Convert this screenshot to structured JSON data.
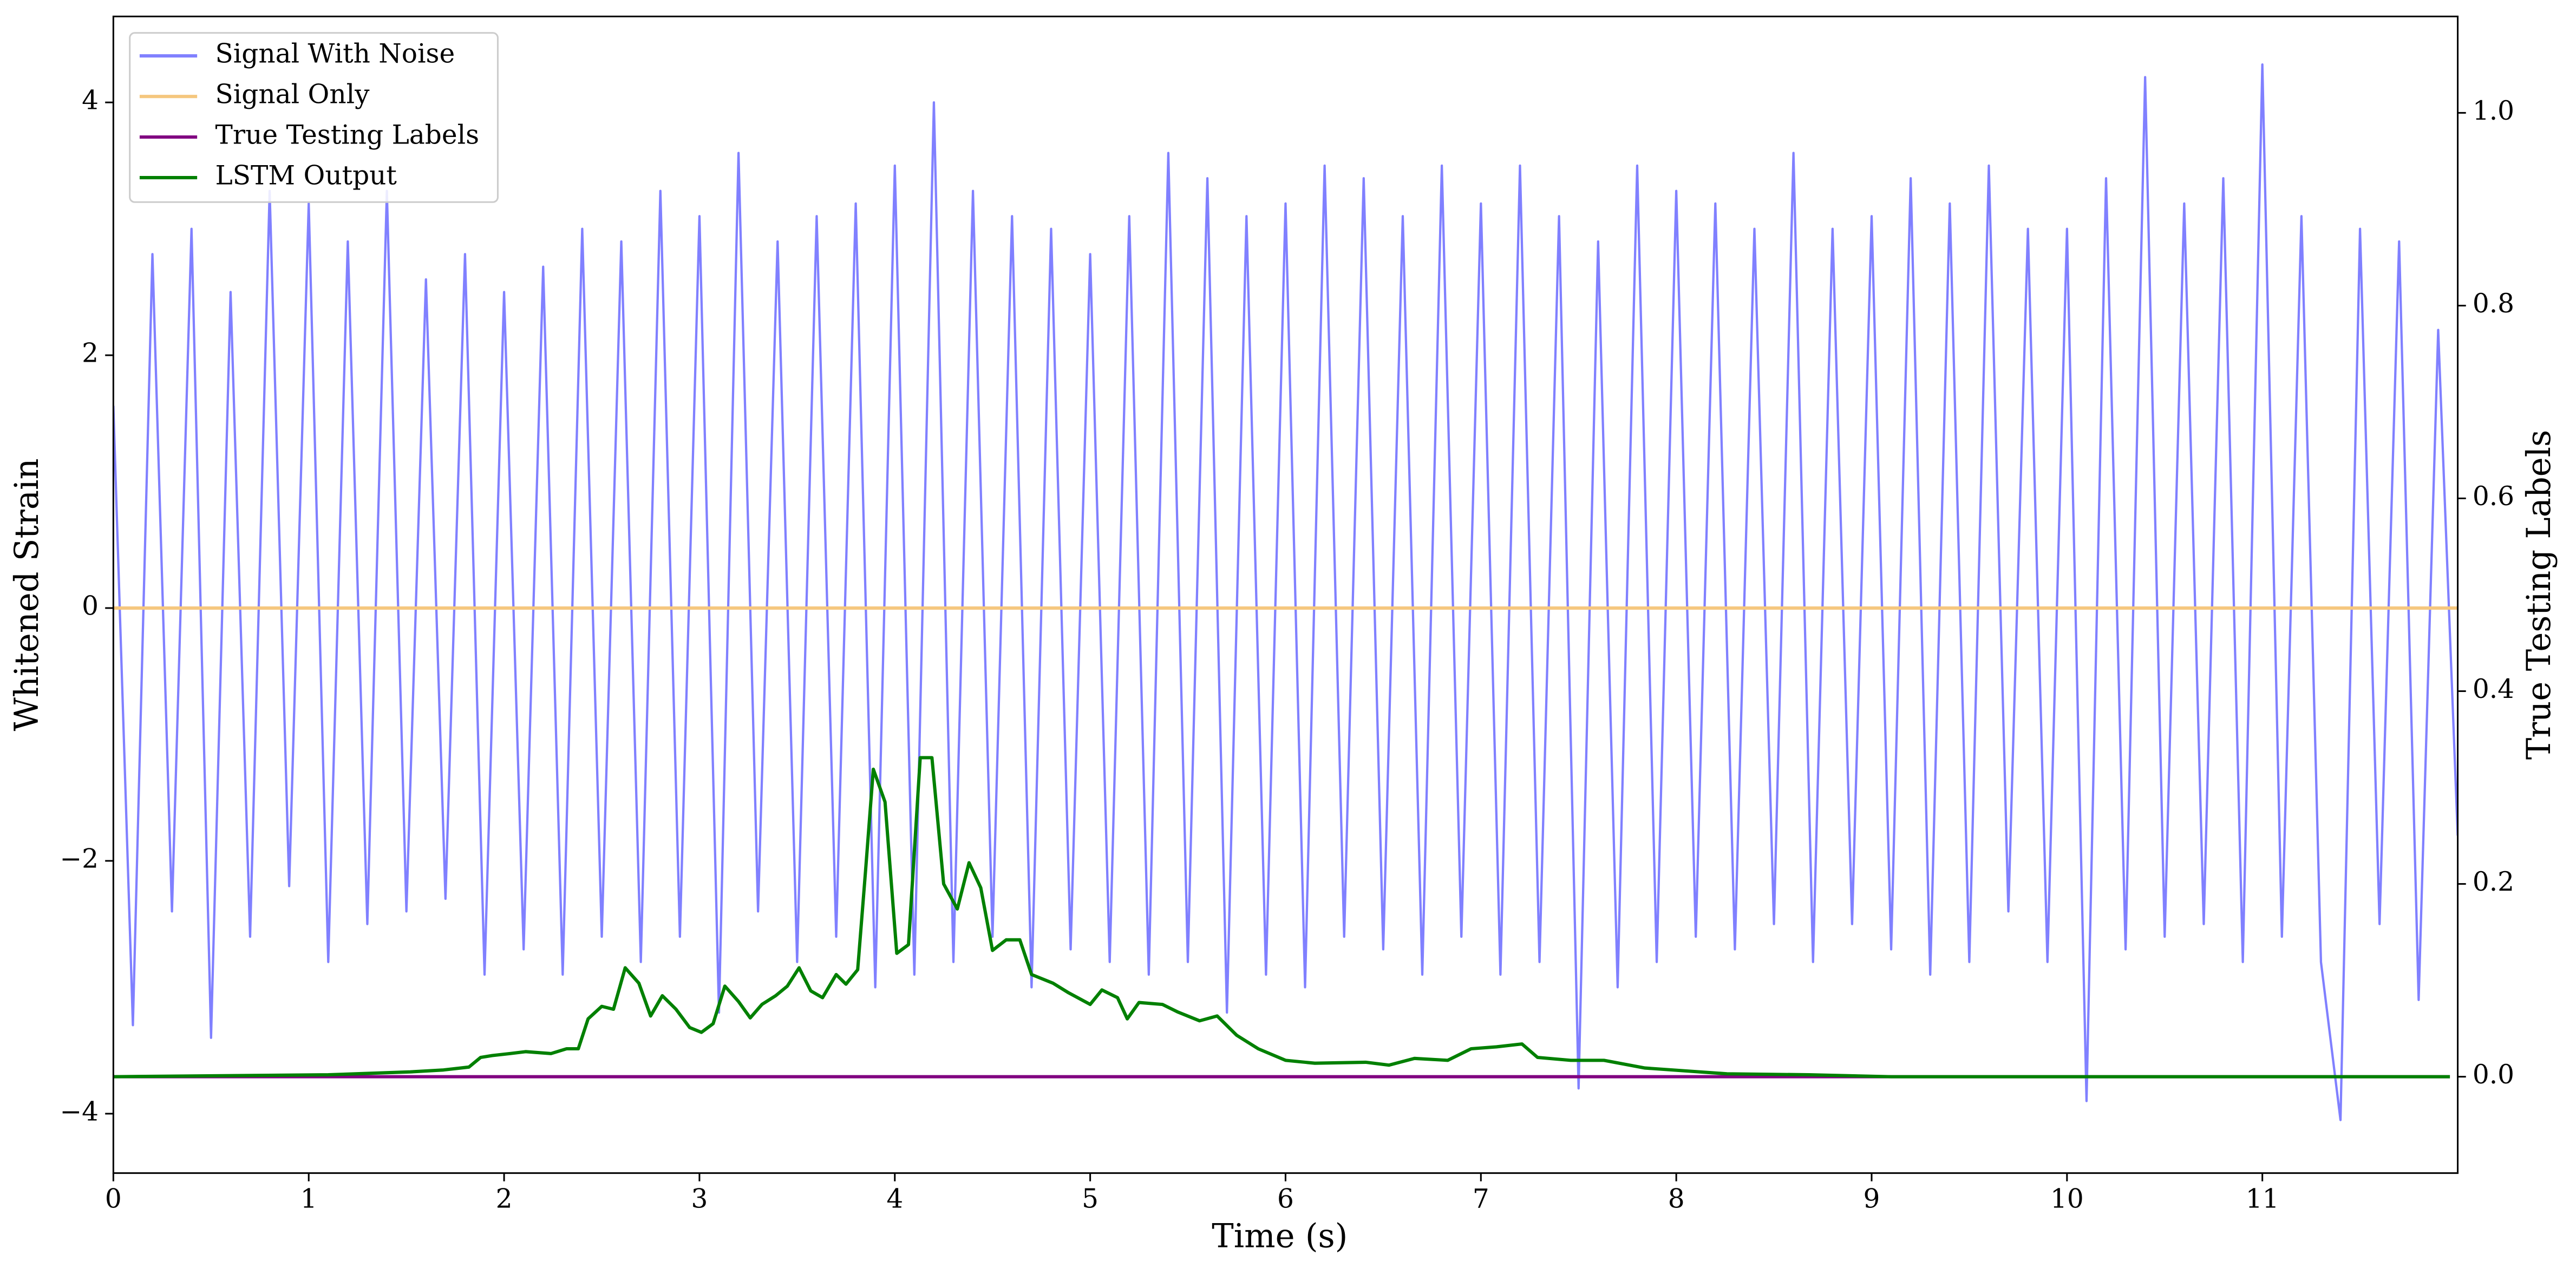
{
  "chart_data": {
    "type": "line",
    "xlabel": "Time (s)",
    "ylabel": "Whitened Strain",
    "y2label": "True Testing Labels",
    "xlim": [
      0,
      12
    ],
    "ylim": [
      -4.47,
      4.68
    ],
    "y2lim": [
      -0.1,
      1.1
    ],
    "xticks": [
      0,
      1,
      2,
      3,
      4,
      5,
      6,
      7,
      8,
      9,
      10,
      11
    ],
    "yticks": [
      {
        "value": -4,
        "label": "−4"
      },
      {
        "value": -2,
        "label": "−2"
      },
      0,
      2,
      4
    ],
    "y2ticks": [
      {
        "value": 0,
        "label": "0.0"
      },
      {
        "value": 0.2,
        "label": "0.2"
      },
      {
        "value": 0.4,
        "label": "0.4"
      },
      {
        "value": 0.6,
        "label": "0.6"
      },
      {
        "value": 0.8,
        "label": "0.8"
      },
      {
        "value": 1.0,
        "label": "1.0"
      }
    ],
    "legend": "upper left",
    "series": [
      {
        "name": "Signal With Noise",
        "color": "#8080ff",
        "x": [
          0,
          0.1,
          0.2,
          0.3,
          0.4,
          0.5,
          0.6,
          0.7,
          0.8,
          0.9,
          1,
          1.1,
          1.2,
          1.3,
          1.4,
          1.5,
          1.6,
          1.7,
          1.8,
          1.9,
          2,
          2.1,
          2.2,
          2.3,
          2.4,
          2.5,
          2.6,
          2.7,
          2.8,
          2.9,
          3,
          3.1,
          3.2,
          3.3,
          3.4,
          3.5,
          3.6,
          3.7,
          3.8,
          3.9,
          4,
          4.1,
          4.2,
          4.3,
          4.4,
          4.5,
          4.6,
          4.7,
          4.8,
          4.9,
          5,
          5.1,
          5.2,
          5.3,
          5.4,
          5.5,
          5.6,
          5.7,
          5.8,
          5.9,
          6,
          6.1,
          6.2,
          6.3,
          6.4,
          6.5,
          6.6,
          6.7,
          6.8,
          6.9,
          7,
          7.1,
          7.2,
          7.3,
          7.4,
          7.5,
          7.6,
          7.7,
          7.8,
          7.9,
          8,
          8.1,
          8.2,
          8.3,
          8.4,
          8.5,
          8.6,
          8.7,
          8.8,
          8.9,
          9,
          9.1,
          9.2,
          9.3,
          9.4,
          9.5,
          9.6,
          9.7,
          9.8,
          9.9,
          10,
          10.1,
          10.2,
          10.3,
          10.4,
          10.5,
          10.6,
          10.7,
          10.8,
          10.9,
          11,
          11.1,
          11.2,
          11.3,
          11.4,
          11.5,
          11.6,
          11.7,
          11.8,
          11.9,
          12
        ],
        "values": [
          1.6,
          -3.3,
          2.8,
          -2.4,
          3.0,
          -3.4,
          2.5,
          -2.6,
          3.3,
          -2.2,
          3.2,
          -2.8,
          2.9,
          -2.5,
          3.3,
          -2.4,
          2.6,
          -2.3,
          2.8,
          -2.9,
          2.5,
          -2.7,
          2.7,
          -2.9,
          3.0,
          -2.6,
          2.9,
          -2.8,
          3.3,
          -2.6,
          3.1,
          -3.2,
          3.6,
          -2.4,
          2.9,
          -2.8,
          3.1,
          -2.6,
          3.2,
          -3.0,
          3.5,
          -2.9,
          4.0,
          -2.8,
          3.3,
          -2.6,
          3.1,
          -3.0,
          3.0,
          -2.7,
          2.8,
          -2.8,
          3.1,
          -2.9,
          3.6,
          -2.8,
          3.4,
          -3.2,
          3.1,
          -2.9,
          3.2,
          -3.0,
          3.5,
          -2.6,
          3.4,
          -2.7,
          3.1,
          -2.9,
          3.5,
          -2.6,
          3.2,
          -2.9,
          3.5,
          -2.8,
          3.1,
          -3.8,
          2.9,
          -3.0,
          3.5,
          -2.8,
          3.3,
          -2.6,
          3.2,
          -2.7,
          3.0,
          -2.5,
          3.6,
          -2.8,
          3.0,
          -2.5,
          3.1,
          -2.7,
          3.4,
          -2.9,
          3.2,
          -2.8,
          3.5,
          -2.4,
          3.0,
          -2.8,
          3.0,
          -3.9,
          3.4,
          -2.7,
          4.2,
          -2.6,
          3.2,
          -2.5,
          3.4,
          -2.8,
          4.3,
          -2.6,
          3.1,
          -2.8,
          -4.05,
          3.0,
          -2.5,
          2.9,
          -3.1,
          2.2,
          -1.8
        ]
      },
      {
        "name": "Signal Only",
        "color": "#f5c77e",
        "x": [
          0,
          12
        ],
        "values": [
          0,
          0
        ]
      },
      {
        "name": "True Testing Labels",
        "color": "#800080",
        "axis": "y2",
        "x": [
          0,
          11.96
        ],
        "values": [
          0,
          0
        ]
      },
      {
        "name": "LSTM Output",
        "color": "#008000",
        "axis": "y2",
        "x": [
          0,
          1.1,
          1.52,
          1.69,
          1.82,
          1.88,
          1.94,
          2.03,
          2.11,
          2.24,
          2.32,
          2.38,
          2.43,
          2.5,
          2.56,
          2.62,
          2.69,
          2.75,
          2.81,
          2.88,
          2.95,
          3.01,
          3.07,
          3.13,
          3.2,
          3.26,
          3.32,
          3.39,
          3.45,
          3.51,
          3.57,
          3.63,
          3.7,
          3.75,
          3.81,
          3.85,
          3.89,
          3.95,
          4.01,
          4.07,
          4.13,
          4.19,
          4.25,
          4.32,
          4.38,
          4.44,
          4.5,
          4.57,
          4.64,
          4.7,
          4.81,
          4.89,
          5.0,
          5.06,
          5.14,
          5.19,
          5.25,
          5.37,
          5.45,
          5.56,
          5.65,
          5.75,
          5.86,
          6.0,
          6.15,
          6.41,
          6.53,
          6.66,
          6.83,
          6.95,
          7.08,
          7.21,
          7.29,
          7.46,
          7.63,
          7.84,
          8.26,
          8.68,
          9.1,
          11.96
        ],
        "values": [
          0,
          0.002,
          0.005,
          0.007,
          0.01,
          0.02,
          0.022,
          0.024,
          0.026,
          0.024,
          0.029,
          0.029,
          0.06,
          0.073,
          0.07,
          0.113,
          0.097,
          0.063,
          0.084,
          0.07,
          0.051,
          0.046,
          0.055,
          0.094,
          0.078,
          0.061,
          0.075,
          0.084,
          0.094,
          0.113,
          0.089,
          0.082,
          0.106,
          0.096,
          0.111,
          0.213,
          0.319,
          0.285,
          0.128,
          0.137,
          0.331,
          0.331,
          0.2,
          0.174,
          0.222,
          0.196,
          0.131,
          0.142,
          0.142,
          0.106,
          0.097,
          0.087,
          0.075,
          0.09,
          0.082,
          0.06,
          0.077,
          0.075,
          0.067,
          0.058,
          0.063,
          0.043,
          0.029,
          0.017,
          0.014,
          0.015,
          0.012,
          0.019,
          0.017,
          0.029,
          0.031,
          0.034,
          0.02,
          0.017,
          0.017,
          0.009,
          0.003,
          0.002,
          0,
          0
        ]
      }
    ]
  }
}
